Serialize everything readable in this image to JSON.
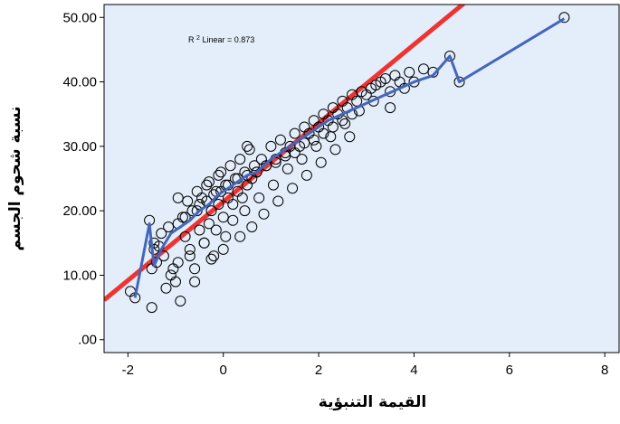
{
  "chart_data": {
    "type": "scatter",
    "xlabel": "القيمة التنبؤية",
    "ylabel": "نسبة شحوم الجسم",
    "xlim": [
      -2.5,
      8.3
    ],
    "ylim": [
      -2,
      52
    ],
    "x_ticks": [
      {
        "value": -2,
        "label": "-2"
      },
      {
        "value": 0,
        "label": "0"
      },
      {
        "value": 2,
        "label": "2"
      },
      {
        "value": 4,
        "label": "4"
      },
      {
        "value": 6,
        "label": "6"
      },
      {
        "value": 8,
        "label": "8"
      }
    ],
    "y_ticks": [
      {
        "value": 0,
        "label": ".00"
      },
      {
        "value": 10,
        "label": "10.00"
      },
      {
        "value": 20,
        "label": "20.00"
      },
      {
        "value": 30,
        "label": "30.00"
      },
      {
        "value": 40,
        "label": "40.00"
      },
      {
        "value": 50,
        "label": "50.00"
      }
    ],
    "annotation": {
      "prefix": "R",
      "superscript": "2",
      "suffix": " Linear = 0.873"
    },
    "fit_line": {
      "intercept": 21.4,
      "slope": 6.1
    },
    "grid": false,
    "legend": "none",
    "colors": {
      "plot_bg": "#e4eefa",
      "points": "#000000",
      "fit_line": "#ee3333",
      "connect_line": "#4466bb"
    },
    "series": [
      {
        "role": "points",
        "x": [
          -1.95,
          -1.85,
          -1.5,
          -1.55,
          -1.45,
          -1.4,
          -1.2,
          -1.25,
          -1.1,
          -1.0,
          -0.95,
          -0.9,
          -0.8,
          -0.85,
          -0.7,
          -0.6,
          -0.55,
          -0.5,
          -0.45,
          -0.4,
          -0.35,
          -0.3,
          -0.25,
          -0.2,
          -0.15,
          -0.1,
          -0.05,
          0.0,
          0.05,
          0.1,
          0.15,
          0.2,
          0.25,
          0.3,
          0.35,
          0.4,
          0.45,
          0.5,
          0.55,
          0.6,
          0.65,
          0.7,
          0.8,
          0.9,
          1.0,
          1.1,
          1.2,
          1.3,
          1.4,
          1.5,
          1.6,
          1.7,
          1.8,
          1.9,
          2.0,
          2.1,
          2.2,
          2.3,
          2.4,
          2.5,
          2.6,
          2.7,
          2.8,
          2.9,
          3.0,
          3.1,
          3.2,
          3.3,
          3.4,
          3.5,
          3.6,
          3.7,
          3.8,
          3.9,
          4.0,
          4.2,
          4.4,
          4.75,
          4.95,
          7.15,
          -1.5,
          -1.45,
          -1.3,
          -1.15,
          -0.95,
          -0.8,
          -0.65,
          -0.5,
          -0.35,
          -0.2,
          -0.05,
          0.1,
          0.3,
          0.5,
          0.7,
          0.9,
          1.1,
          1.3,
          1.5,
          1.7,
          1.9,
          2.1,
          2.3,
          2.5,
          2.7,
          0.5,
          -0.95,
          -0.75,
          -0.55,
          -0.3,
          -0.1,
          0.05,
          -1.35,
          -0.7,
          -0.4,
          -0.15,
          0.2,
          0.45,
          0.75,
          1.05,
          1.35,
          1.65,
          1.95,
          2.25,
          2.55,
          2.85,
          3.15,
          -1.05,
          -0.6,
          -0.25,
          0.0,
          0.35,
          0.6,
          0.85,
          1.15,
          1.45,
          1.75,
          2.05,
          2.35,
          2.65,
          3.5
        ],
        "y": [
          7.5,
          6.5,
          5.0,
          18.5,
          14.0,
          12.0,
          8.0,
          13.0,
          10.0,
          9.0,
          12.0,
          6.0,
          16.0,
          19.0,
          14.0,
          11.0,
          20.0,
          17.0,
          22.0,
          15.0,
          24.0,
          18.0,
          20.0,
          13.0,
          23.0,
          21.0,
          26.0,
          19.0,
          24.0,
          22.0,
          27.0,
          21.0,
          25.0,
          23.0,
          28.0,
          22.0,
          26.0,
          24.0,
          29.5,
          25.0,
          27.0,
          26.0,
          28.0,
          27.0,
          30.0,
          28.0,
          31.0,
          29.0,
          30.0,
          32.0,
          30.0,
          33.0,
          32.0,
          34.0,
          33.0,
          35.0,
          34.0,
          36.0,
          35.0,
          37.0,
          36.0,
          38.0,
          37.0,
          38.5,
          38.0,
          39.0,
          39.5,
          40.0,
          40.5,
          38.5,
          41.0,
          40.0,
          39.0,
          41.5,
          40.0,
          42.0,
          41.5,
          44.0,
          40.0,
          50.0,
          11.0,
          15.0,
          16.5,
          17.5,
          18.0,
          19.0,
          20.0,
          21.0,
          21.5,
          22.5,
          23.0,
          24.0,
          25.0,
          25.5,
          26.0,
          27.0,
          27.5,
          28.5,
          29.0,
          30.5,
          31.0,
          32.0,
          33.0,
          34.0,
          35.0,
          30.0,
          22.0,
          21.5,
          23.0,
          24.5,
          25.5,
          16.0,
          14.5,
          13.0,
          15.0,
          17.0,
          18.5,
          20.0,
          22.0,
          24.0,
          26.5,
          28.0,
          30.0,
          31.5,
          33.5,
          35.5,
          37.0,
          11.0,
          9.0,
          12.5,
          14.0,
          16.0,
          17.5,
          19.5,
          21.5,
          23.5,
          25.5,
          27.5,
          29.5,
          31.5,
          36.0
        ]
      },
      {
        "role": "connecting-line",
        "x": [
          -1.85,
          -1.55,
          -1.5,
          -1.45,
          -1.3,
          -1.1,
          -0.9,
          -0.7,
          -0.5,
          -0.3,
          -0.1,
          0.1,
          0.3,
          0.5,
          0.7,
          1.0,
          1.3,
          1.6,
          1.9,
          2.2,
          2.5,
          2.8,
          3.1,
          3.4,
          3.7,
          4.0,
          4.4,
          4.75,
          4.95,
          7.15
        ],
        "y": [
          6.5,
          18.0,
          14.5,
          11.5,
          14.0,
          16.5,
          17.5,
          18.5,
          20.0,
          21.0,
          22.5,
          23.5,
          24.5,
          25.5,
          26.0,
          28.0,
          29.5,
          31.0,
          32.5,
          34.0,
          35.0,
          36.0,
          37.0,
          38.0,
          39.0,
          40.0,
          41.0,
          44.0,
          40.0,
          49.8
        ]
      }
    ]
  }
}
